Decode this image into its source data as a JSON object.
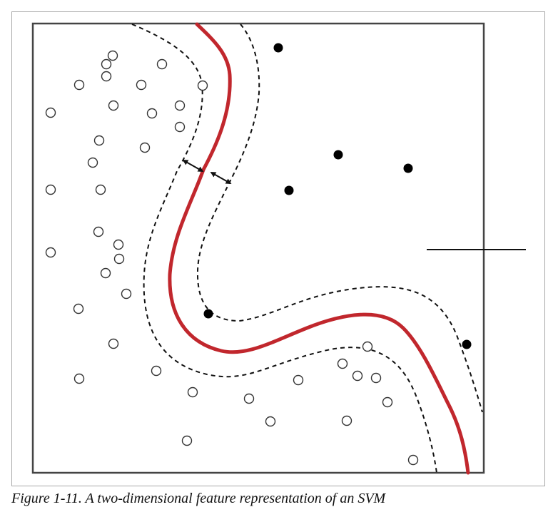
{
  "caption": "Figure 1-11. A two-dimensional feature representation of an SVM",
  "colors": {
    "decision_boundary": "#c1272d",
    "margin": "#111111",
    "positive_point": "#000000",
    "negative_point_stroke": "#333333",
    "axes_box": "#444444"
  }
}
